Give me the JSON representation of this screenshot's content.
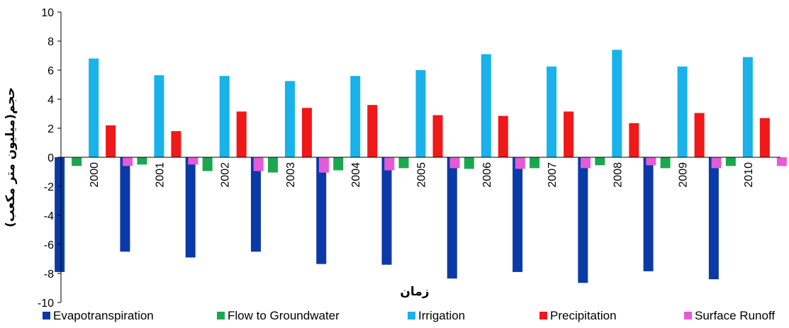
{
  "chart_data": {
    "type": "bar",
    "categories": [
      "2000",
      "2001",
      "2002",
      "2003",
      "2004",
      "2005",
      "2006",
      "2007",
      "2008",
      "2009",
      "2010"
    ],
    "xlabel": "زمان",
    "ylabel": "حجم(میلیون متر مکعب)",
    "ylim": [
      -10,
      10
    ],
    "yticks": [
      "10",
      "8",
      "6",
      "4",
      "2",
      "0",
      "-2",
      "-4",
      "-6",
      "-8",
      "-10"
    ],
    "grid": false,
    "legend_position": "bottom",
    "series": [
      {
        "name": "Evapotranspiration",
        "color": "#0a3aa8",
        "values": [
          -7.9,
          -6.5,
          -6.9,
          -6.5,
          -7.35,
          -7.4,
          -8.35,
          -7.9,
          -8.65,
          -7.85,
          -8.4
        ]
      },
      {
        "name": "Flow to Groundwater",
        "color": "#1aa84f",
        "values": [
          -0.6,
          -0.5,
          -0.95,
          -1.05,
          -0.9,
          -0.75,
          -0.8,
          -0.75,
          -0.55,
          -0.75,
          -0.6
        ]
      },
      {
        "name": "Irrigation",
        "color": "#19b2ea",
        "values": [
          6.8,
          5.65,
          5.6,
          5.25,
          5.6,
          6.0,
          7.1,
          6.25,
          7.4,
          6.25,
          6.9
        ]
      },
      {
        "name": "Precipitation",
        "color": "#f01818",
        "values": [
          2.2,
          1.8,
          3.15,
          3.4,
          3.6,
          2.9,
          2.85,
          3.15,
          2.35,
          3.05,
          2.7
        ]
      },
      {
        "name": "Surface Runoff",
        "color": "#e45ad8",
        "values": [
          -0.6,
          -0.5,
          -0.95,
          -1.05,
          -0.9,
          -0.75,
          -0.8,
          -0.75,
          -0.55,
          -0.75,
          -0.6
        ]
      }
    ]
  }
}
